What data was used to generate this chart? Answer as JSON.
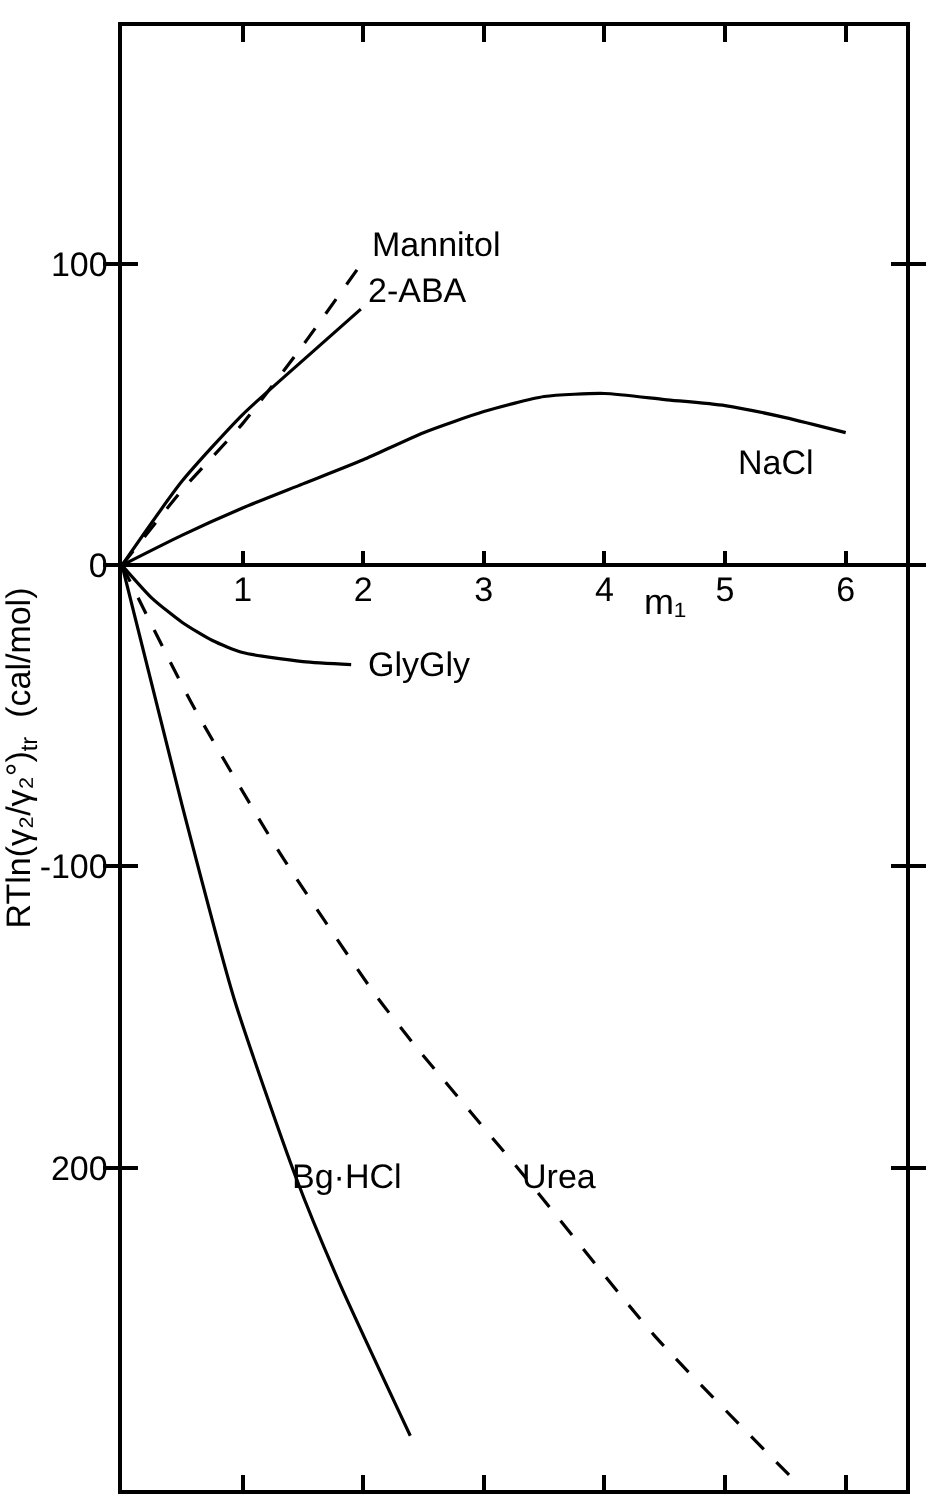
{
  "chart_data": {
    "type": "line",
    "xlabel": "m₁",
    "ylabel": "RTln(γ₂/γ₂°)$_{tr}$  (cal/mol)",
    "xlim": [
      0,
      6.5
    ],
    "ylim": [
      -307,
      179
    ],
    "xticks": [
      1,
      2,
      3,
      4,
      5,
      6
    ],
    "yticks": [
      100,
      0,
      -100,
      {
        "value": -200,
        "label": "200"
      }
    ],
    "grid": false,
    "legend": false,
    "marker": "none",
    "series": [
      {
        "name": "Mannitol",
        "color": "#000000",
        "line_style": "dashed",
        "x": [
          0,
          0.5,
          1,
          1.5,
          2
        ],
        "values": [
          0,
          25,
          47,
          73,
          101
        ]
      },
      {
        "name": "2-ABA",
        "color": "#000000",
        "line_style": "solid",
        "x": [
          0,
          0.5,
          1,
          1.5,
          1.98
        ],
        "values": [
          0,
          28,
          50,
          68,
          85
        ]
      },
      {
        "name": "NaCl",
        "color": "#000000",
        "line_style": "solid",
        "x": [
          0,
          0.5,
          1,
          1.5,
          2,
          2.5,
          3,
          3.5,
          4,
          4.5,
          5,
          5.5,
          6
        ],
        "values": [
          0,
          10,
          19,
          27,
          35,
          44,
          51,
          56,
          57,
          55,
          53,
          49,
          44
        ]
      },
      {
        "name": "GlyGly",
        "color": "#000000",
        "line_style": "solid",
        "x": [
          0,
          0.25,
          0.5,
          0.75,
          1,
          1.5,
          1.9
        ],
        "values": [
          0,
          -11,
          -19,
          -25,
          -29,
          -32,
          -33
        ]
      },
      {
        "name": "Bg·HCl",
        "color": "#000000",
        "line_style": "solid",
        "x": [
          0,
          0.5,
          0.93,
          1.44,
          1.8,
          2.39
        ],
        "values": [
          0,
          -80,
          -144,
          -203,
          -238,
          -289
        ]
      },
      {
        "name": "Urea",
        "color": "#000000",
        "line_style": "dashed",
        "x": [
          0,
          0.58,
          1.3,
          2.09,
          2.42,
          3.34,
          4.42,
          5.58
        ],
        "values": [
          0,
          -46,
          -95,
          -142,
          -159,
          -203,
          -256,
          -304
        ]
      }
    ]
  }
}
